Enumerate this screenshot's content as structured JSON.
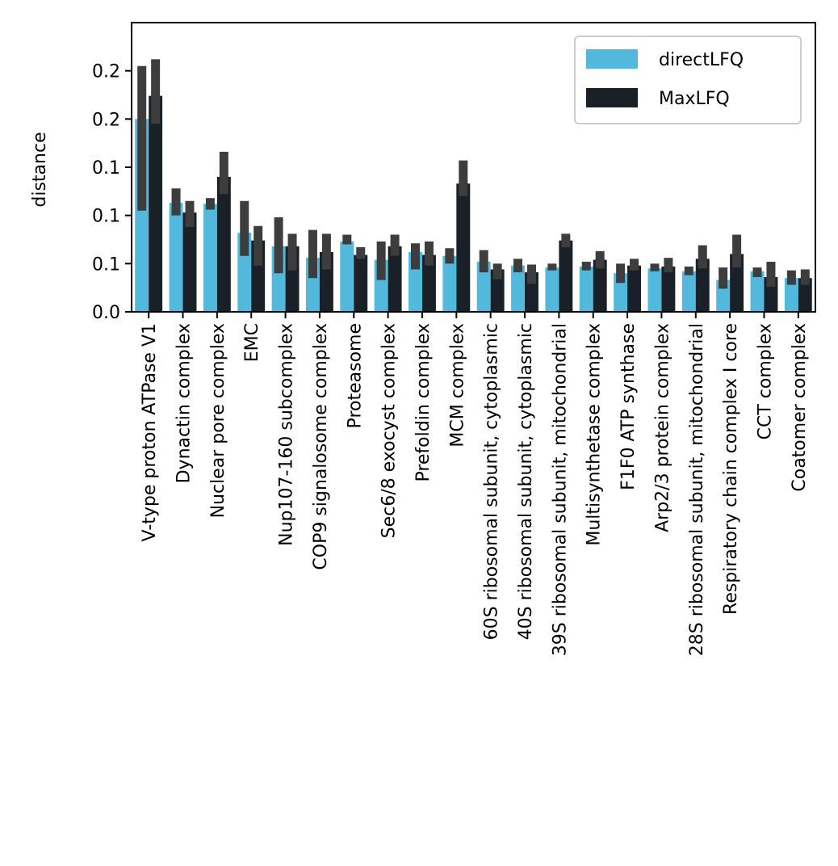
{
  "chart_data": {
    "type": "bar",
    "ylabel": "distance",
    "xlabel": "",
    "ylim": [
      0,
      0.3
    ],
    "yticks": [
      0.0,
      0.05,
      0.1,
      0.15,
      0.2,
      0.25
    ],
    "ytick_labels": [
      "0.0",
      "0.1",
      "0.1",
      "0.1",
      "0.2",
      "0.2"
    ],
    "legend_position": "top-right",
    "categories": [
      "V-type proton ATPase V1",
      "Dynactin complex",
      "Nuclear pore complex",
      "EMC",
      "Nup107-160 subcomplex",
      "COP9 signalosome complex",
      "Proteasome",
      "Sec6/8 exocyst complex",
      "Prefoldin complex",
      "MCM complex",
      "60S ribosomal subunit, cytoplasmic",
      "40S ribosomal subunit, cytoplasmic",
      "39S ribosomal subunit, mitochondrial",
      "Multisynthetase complex",
      "F1F0 ATP synthase",
      "Arp2/3 protein complex",
      "28S ribosomal subunit, mitochondrial",
      "Respiratory chain complex I core",
      "CCT complex",
      "Coatomer complex"
    ],
    "series": [
      {
        "name": "directLFQ",
        "color": "#52b8dc",
        "values": [
          0.2,
          0.113,
          0.112,
          0.082,
          0.068,
          0.056,
          0.073,
          0.054,
          0.062,
          0.058,
          0.052,
          0.048,
          0.046,
          0.047,
          0.04,
          0.045,
          0.042,
          0.033,
          0.042,
          0.035
        ],
        "ci": [
          [
            0.105,
            0.255
          ],
          [
            0.1,
            0.128
          ],
          [
            0.106,
            0.118
          ],
          [
            0.058,
            0.115
          ],
          [
            0.04,
            0.098
          ],
          [
            0.035,
            0.085
          ],
          [
            0.07,
            0.08
          ],
          [
            0.033,
            0.073
          ],
          [
            0.044,
            0.071
          ],
          [
            0.05,
            0.066
          ],
          [
            0.041,
            0.064
          ],
          [
            0.041,
            0.055
          ],
          [
            0.043,
            0.05
          ],
          [
            0.043,
            0.052
          ],
          [
            0.03,
            0.05
          ],
          [
            0.042,
            0.05
          ],
          [
            0.038,
            0.047
          ],
          [
            0.024,
            0.046
          ],
          [
            0.036,
            0.046
          ],
          [
            0.028,
            0.043
          ]
        ]
      },
      {
        "name": "MaxLFQ",
        "color": "#1a2028",
        "values": [
          0.224,
          0.103,
          0.14,
          0.074,
          0.068,
          0.062,
          0.059,
          0.068,
          0.059,
          0.133,
          0.044,
          0.041,
          0.074,
          0.054,
          0.048,
          0.047,
          0.055,
          0.06,
          0.036,
          0.035
        ],
        "ci": [
          [
            0.195,
            0.262
          ],
          [
            0.088,
            0.115
          ],
          [
            0.122,
            0.166
          ],
          [
            0.048,
            0.089
          ],
          [
            0.043,
            0.081
          ],
          [
            0.044,
            0.081
          ],
          [
            0.055,
            0.067
          ],
          [
            0.058,
            0.08
          ],
          [
            0.048,
            0.073
          ],
          [
            0.12,
            0.157
          ],
          [
            0.034,
            0.05
          ],
          [
            0.029,
            0.049
          ],
          [
            0.067,
            0.081
          ],
          [
            0.045,
            0.063
          ],
          [
            0.043,
            0.055
          ],
          [
            0.041,
            0.056
          ],
          [
            0.045,
            0.069
          ],
          [
            0.046,
            0.08
          ],
          [
            0.026,
            0.052
          ],
          [
            0.028,
            0.044
          ]
        ]
      }
    ]
  }
}
